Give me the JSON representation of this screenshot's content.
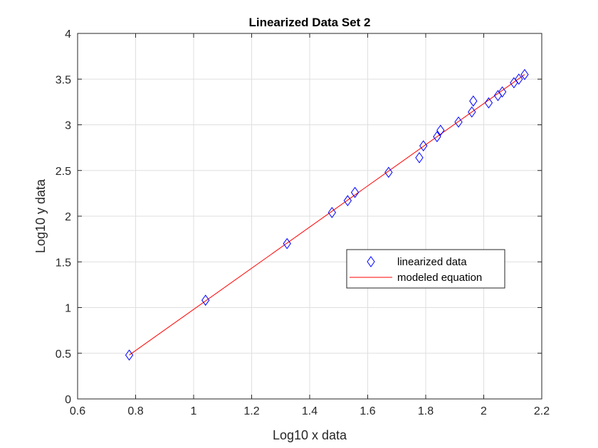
{
  "chart_data": {
    "type": "scatter",
    "title": "Linearized Data Set 2",
    "xlabel": "Log10 x data",
    "ylabel": "Log10 y data",
    "xlim": [
      0.6,
      2.2
    ],
    "ylim": [
      0,
      4
    ],
    "x_ticks": [
      "0.6",
      "0.8",
      "1",
      "1.2",
      "1.4",
      "1.6",
      "1.8",
      "2",
      "2.2"
    ],
    "y_ticks": [
      "0",
      "0.5",
      "1",
      "1.5",
      "2",
      "2.5",
      "3",
      "3.5",
      "4"
    ],
    "grid": true,
    "legend_position": "center-right",
    "series": [
      {
        "name": "linearized data",
        "marker": "diamond",
        "color": "#0000ff",
        "points": [
          [
            0.778,
            0.48
          ],
          [
            1.041,
            1.08
          ],
          [
            1.322,
            1.7
          ],
          [
            1.477,
            2.04
          ],
          [
            1.531,
            2.17
          ],
          [
            1.556,
            2.26
          ],
          [
            1.672,
            2.48
          ],
          [
            1.778,
            2.64
          ],
          [
            1.792,
            2.77
          ],
          [
            1.839,
            2.87
          ],
          [
            1.851,
            2.94
          ],
          [
            1.913,
            3.03
          ],
          [
            1.959,
            3.14
          ],
          [
            1.964,
            3.26
          ],
          [
            2.017,
            3.24
          ],
          [
            2.049,
            3.32
          ],
          [
            2.064,
            3.36
          ],
          [
            2.104,
            3.46
          ],
          [
            2.121,
            3.5
          ],
          [
            2.141,
            3.55
          ]
        ]
      },
      {
        "name": "modeled equation",
        "line": true,
        "color": "#ff0000",
        "points": [
          [
            0.778,
            0.48
          ],
          [
            2.141,
            3.55
          ]
        ]
      }
    ]
  }
}
